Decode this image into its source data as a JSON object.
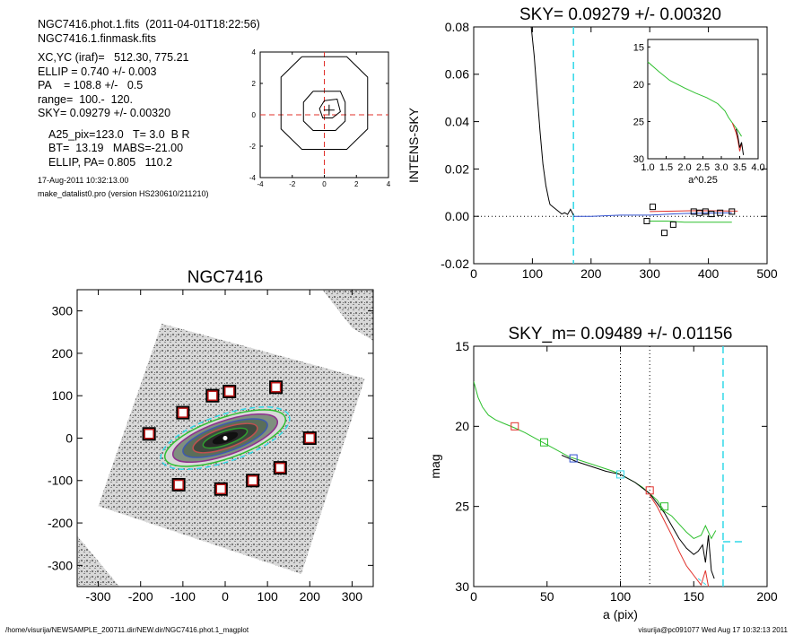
{
  "header": {
    "lines_block1": [
      "NGC7416.phot.1.fits  (2011-04-01T18:22:56)",
      "NGC7416.1.finmask.fits"
    ],
    "lines_block2": [
      "XC,YC (iraf)=   512.30, 775.21",
      "ELLIP = 0.740 +/- 0.003",
      "PA    = 108.8 +/-   0.5",
      "range=  100.-  120.",
      "SKY= 0.09279 +/- 0.00320"
    ],
    "lines_block3": [
      "A25_pix=123.0   T= 3.0  B R",
      "BT=  13.19   MABS=-21.00",
      "ELLIP, PA= 0.805   110.2"
    ],
    "date_line": "17-Aug-2011 10:32:13.00",
    "program_line": "make_datalist0.pro (version HS230610/211210)"
  },
  "footer": {
    "path": "/home/visurija/NEWSAMPLE_200711.dir/NEW.dir/NGC7416.phot.1_magplot",
    "user_stamp": "visurija@pc091077  Wed Aug 17 10:32:13 2011"
  },
  "colors": {
    "red": "#e0302a",
    "green": "#2fc02f",
    "blue": "#3050d0",
    "cyan": "#30d8e8",
    "black": "#000000",
    "gray": "#555555"
  },
  "chart_data": [
    {
      "id": "center_contour",
      "type": "contour",
      "xlim": [
        -4,
        4
      ],
      "ylim": [
        -4,
        4
      ],
      "xticks": [
        "-4",
        "-2",
        "0",
        "2",
        "4"
      ],
      "yticks": [
        "-4",
        "-2",
        "0",
        "2",
        "4"
      ],
      "contours": [
        {
          "points": [
            [
              -1.4,
              3.7
            ],
            [
              1.4,
              3.7
            ],
            [
              2.7,
              2.4
            ],
            [
              2.7,
              -0.9
            ],
            [
              1.4,
              -2.2
            ],
            [
              -1.4,
              -2.2
            ],
            [
              -2.7,
              -0.9
            ],
            [
              -2.7,
              2.4
            ]
          ]
        },
        {
          "points": [
            [
              -0.7,
              1.5
            ],
            [
              1.0,
              1.5
            ],
            [
              1.3,
              0.8
            ],
            [
              1.3,
              -0.4
            ],
            [
              0.7,
              -1.0
            ],
            [
              -0.7,
              -1.0
            ],
            [
              -1.3,
              -0.4
            ],
            [
              -1.3,
              0.8
            ]
          ]
        },
        {
          "points": [
            [
              0,
              0.9
            ],
            [
              0.8,
              1.0
            ],
            [
              1.0,
              0.2
            ],
            [
              0.5,
              -0.2
            ],
            [
              -0.1,
              -0.2
            ],
            [
              -0.3,
              0.4
            ]
          ]
        }
      ],
      "crosshair": {
        "x": 0,
        "y": 0
      }
    },
    {
      "id": "sky_profile",
      "type": "line",
      "title": "SKY= 0.09279 +/- 0.00320",
      "ylabel": "INTENS-SKY",
      "xlabel": "",
      "xlim": [
        0,
        500
      ],
      "ylim": [
        -0.02,
        0.08
      ],
      "xticks": [
        "0",
        "100",
        "200",
        "300",
        "400",
        "500"
      ],
      "yticks": [
        "-0.02",
        "0.00",
        "0.02",
        "0.04",
        "0.06",
        "0.08"
      ],
      "vline_cyan_x": 170,
      "series": [
        {
          "color": "black",
          "x": [
            98,
            103,
            108,
            113,
            118,
            123,
            128,
            130,
            135,
            140,
            145,
            150,
            155,
            160,
            165,
            170
          ],
          "y": [
            0.08,
            0.068,
            0.052,
            0.036,
            0.022,
            0.013,
            0.007,
            0.005,
            0.004,
            0.003,
            0.002,
            0.001,
            0.0015,
            0.0008,
            0.003,
            0.0005
          ]
        },
        {
          "color": "blue",
          "x": [
            170,
            200,
            250,
            300,
            340,
            360,
            380,
            400,
            440
          ],
          "y": [
            0.0,
            0.0,
            0.0005,
            0.0005,
            0.001,
            0.0012,
            0.0013,
            0.0014,
            0.0015
          ]
        },
        {
          "color": "green",
          "x": [
            300,
            330,
            360,
            400,
            440
          ],
          "y": [
            -0.002,
            -0.002,
            -0.0025,
            -0.0025,
            -0.0025
          ]
        },
        {
          "color": "red",
          "x": [
            300,
            340,
            380,
            420,
            450
          ],
          "y": [
            0.002,
            0.0022,
            0.0024,
            0.0023,
            0.0022
          ]
        }
      ],
      "sky_squares": {
        "x": [
          295,
          305,
          325,
          340,
          375,
          385,
          395,
          405,
          420,
          440
        ],
        "y": [
          -0.002,
          0.004,
          -0.007,
          -0.0035,
          0.002,
          0.0015,
          0.002,
          0.001,
          0.0015,
          0.002
        ]
      },
      "inset": {
        "xlabel": "a^0.25",
        "xlim": [
          1.0,
          4.0
        ],
        "ylim": [
          30,
          14
        ],
        "xticks": [
          "1.0",
          "1.5",
          "2.0",
          "2.5",
          "3.0",
          "3.5",
          "4.0"
        ],
        "yticks": [
          "15",
          "20",
          "25",
          "30"
        ],
        "series": [
          {
            "color": "green",
            "x": [
              1.0,
              1.3,
              1.6,
              2.0,
              2.3,
              2.6,
              2.9,
              3.1,
              3.2,
              3.3,
              3.45,
              3.55
            ],
            "y": [
              17.0,
              18.3,
              19.5,
              20.5,
              21.2,
              21.8,
              22.6,
              23.6,
              24.5,
              25.2,
              26.2,
              27.0
            ]
          },
          {
            "color": "red",
            "x": [
              3.3,
              3.4,
              3.45,
              3.5,
              3.55
            ],
            "y": [
              25.2,
              26.5,
              27.5,
              29.0,
              28.0
            ]
          },
          {
            "color": "black",
            "x": [
              3.4,
              3.45,
              3.5,
              3.55,
              3.6
            ],
            "y": [
              26.0,
              27.0,
              28.5,
              27.8,
              29.5
            ]
          }
        ]
      }
    },
    {
      "id": "galaxy_image",
      "type": "image",
      "title": "NGC7416",
      "xlim": [
        -350,
        350
      ],
      "ylim": [
        -350,
        350
      ],
      "xticks": [
        "-300",
        "-200",
        "-100",
        "0",
        "100",
        "200",
        "300"
      ],
      "yticks": [
        "-300",
        "-200",
        "-100",
        "0",
        "100",
        "200",
        "300"
      ],
      "sky_boxes": [
        [
          -30,
          100
        ],
        [
          10,
          110
        ],
        [
          120,
          120
        ],
        [
          -100,
          60
        ],
        [
          -180,
          10
        ],
        [
          200,
          0
        ],
        [
          -110,
          -110
        ],
        [
          -10,
          -120
        ],
        [
          65,
          -100
        ],
        [
          130,
          -70
        ]
      ]
    },
    {
      "id": "mag_profile",
      "type": "line",
      "title": "SKY_m=  0.09489 +/- 0.01156",
      "ylabel": "mag",
      "xlabel": "a (pix)",
      "xlim": [
        0,
        200
      ],
      "ylim": [
        30,
        15
      ],
      "xticks": [
        "0",
        "50",
        "100",
        "150",
        "200"
      ],
      "yticks": [
        "15",
        "20",
        "25",
        "30"
      ],
      "vlines_dotted_x": [
        100,
        120
      ],
      "vline_cyan_x": 170,
      "cyan_segment": {
        "x": [
          153,
          160
        ],
        "y": [
          29.5,
          30
        ]
      },
      "cyan_hline": {
        "x": [
          170,
          184
        ],
        "y": 27.2
      },
      "series": [
        {
          "color": "green",
          "x": [
            0,
            3,
            6,
            10,
            15,
            20,
            28,
            35,
            45,
            55,
            65,
            75,
            85,
            95,
            100,
            110,
            115,
            120,
            125,
            130,
            135,
            140,
            145,
            150,
            155,
            158,
            162,
            165
          ],
          "y": [
            17.2,
            18.2,
            18.8,
            19.3,
            19.6,
            19.8,
            20.1,
            20.4,
            20.9,
            21.4,
            21.9,
            22.2,
            22.5,
            22.8,
            23.0,
            23.5,
            23.8,
            24.2,
            24.6,
            25.3,
            25.6,
            26.1,
            26.6,
            27.0,
            26.8,
            26.2,
            27.0,
            26.5
          ]
        },
        {
          "color": "black",
          "x": [
            60,
            70,
            80,
            90,
            100,
            110,
            120,
            125,
            130,
            135,
            140,
            145,
            150,
            153,
            156,
            158,
            160,
            162,
            164
          ],
          "y": [
            21.8,
            22.2,
            22.5,
            22.8,
            23.0,
            23.5,
            24.2,
            24.8,
            25.4,
            26.2,
            27.0,
            27.6,
            28.0,
            27.8,
            27.4,
            28.5,
            26.8,
            29.0,
            29.5
          ]
        },
        {
          "color": "red",
          "x": [
            120,
            125,
            130,
            135,
            140,
            145,
            150,
            155,
            158,
            160
          ],
          "y": [
            24.3,
            25.0,
            25.9,
            26.8,
            27.8,
            28.7,
            29.3,
            29.9,
            29.0,
            30.0
          ]
        }
      ],
      "markers": [
        {
          "color": "red",
          "x": 28,
          "y": 20.0
        },
        {
          "color": "green",
          "x": 48,
          "y": 21.0
        },
        {
          "color": "blue",
          "x": 68,
          "y": 22.0
        },
        {
          "color": "cyan",
          "x": 100,
          "y": 23.0
        },
        {
          "color": "red",
          "x": 120,
          "y": 24.0
        },
        {
          "color": "green",
          "x": 130,
          "y": 25.0
        }
      ]
    }
  ]
}
